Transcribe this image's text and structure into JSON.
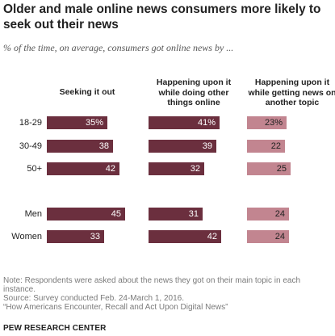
{
  "title": "Older and male online news consumers more likely to seek out their news",
  "subtitle": "% of the time, on average, consumers got online news by ...",
  "notes": {
    "note": "Note: Respondents were asked about the news they got on their main topic in each instance.",
    "source": "Source: Survey conducted Feb. 24-March 1, 2016.",
    "report": "“How Americans Encounter, Recall and Act Upon Digital News”"
  },
  "footer": "PEW RESEARCH CENTER",
  "colors": {
    "dark": "#6b2f3e",
    "light": "#c28590",
    "label_light": "#ffffff",
    "label_dark": "#222222"
  },
  "chart_data": {
    "type": "bar",
    "categories": [
      "18-29",
      "30-49",
      "50+",
      "Men",
      "Women"
    ],
    "series": [
      {
        "name": "Seeking it out",
        "values": [
          35,
          38,
          42,
          45,
          33
        ],
        "labels": [
          "35%",
          "38",
          "42",
          "45",
          "33"
        ]
      },
      {
        "name": "Happening upon it while doing other things online",
        "values": [
          41,
          39,
          32,
          31,
          42
        ],
        "labels": [
          "41%",
          "39",
          "32",
          "31",
          "42"
        ]
      },
      {
        "name": "Happening upon it while getting news on another topic",
        "values": [
          23,
          22,
          25,
          24,
          24
        ],
        "labels": [
          "23%",
          "22",
          "25",
          "24",
          "24"
        ]
      }
    ]
  }
}
